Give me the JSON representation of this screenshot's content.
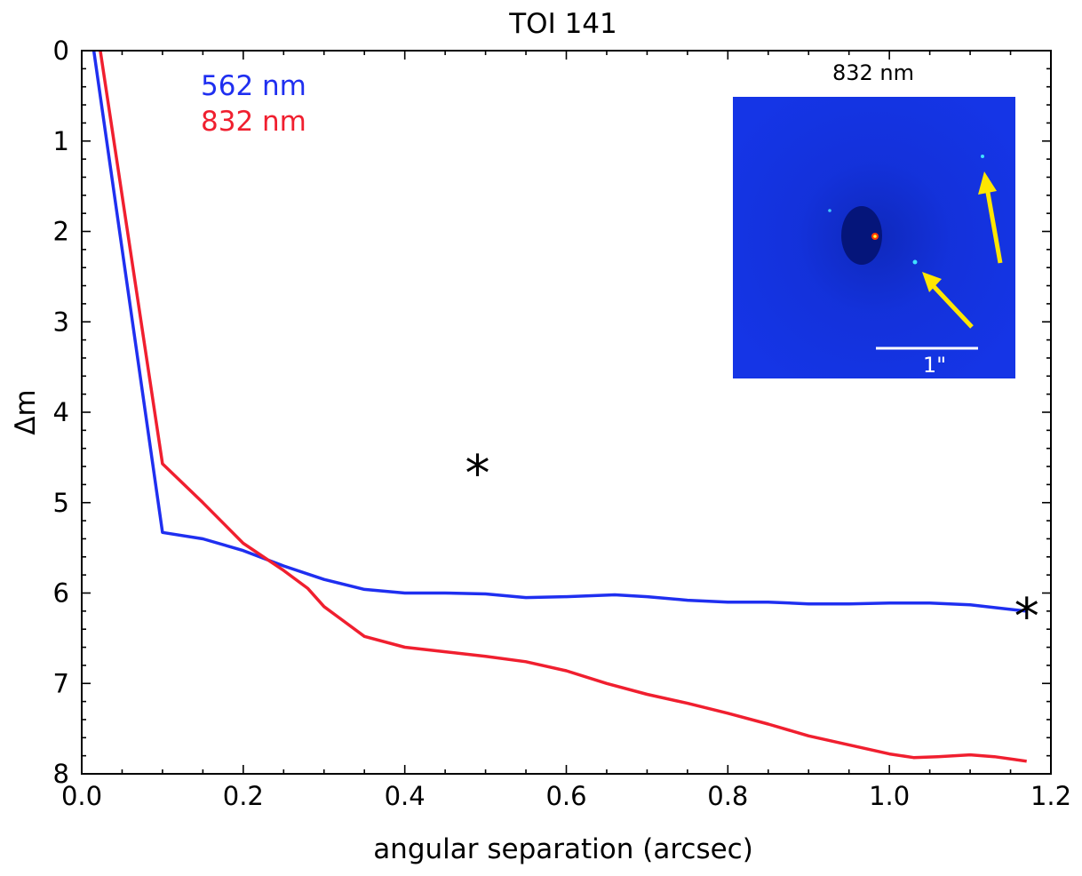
{
  "chart_data": {
    "type": "line",
    "title": "TOI 141",
    "xlabel": "angular separation (arcsec)",
    "ylabel": "Δm",
    "xlim": [
      0.0,
      1.2
    ],
    "ylim": [
      8,
      0
    ],
    "y_inverted": true,
    "grid": false,
    "legend_position": "top-left",
    "x_ticks": [
      "0.0",
      "0.2",
      "0.4",
      "0.6",
      "0.8",
      "1.0",
      "1.2"
    ],
    "y_ticks": [
      "0",
      "1",
      "2",
      "3",
      "4",
      "5",
      "6",
      "7",
      "8"
    ],
    "series": [
      {
        "name": "562 nm",
        "color": "#1f2ff0",
        "x": [
          0.015,
          0.1,
          0.15,
          0.2,
          0.25,
          0.3,
          0.35,
          0.4,
          0.45,
          0.5,
          0.55,
          0.6,
          0.66,
          0.7,
          0.75,
          0.8,
          0.85,
          0.9,
          0.95,
          1.0,
          1.05,
          1.1,
          1.17
        ],
        "y": [
          0.0,
          5.33,
          5.4,
          5.53,
          5.7,
          5.85,
          5.96,
          6.0,
          6.0,
          6.01,
          6.05,
          6.04,
          6.02,
          6.04,
          6.08,
          6.1,
          6.1,
          6.12,
          6.12,
          6.11,
          6.11,
          6.13,
          6.2
        ]
      },
      {
        "name": "832 nm",
        "color": "#f01f2f",
        "x": [
          0.023,
          0.1,
          0.15,
          0.2,
          0.25,
          0.28,
          0.3,
          0.35,
          0.4,
          0.45,
          0.5,
          0.55,
          0.6,
          0.65,
          0.7,
          0.75,
          0.8,
          0.85,
          0.9,
          0.95,
          1.0,
          1.03,
          1.06,
          1.1,
          1.13,
          1.17
        ],
        "y": [
          0.0,
          4.57,
          5.0,
          5.45,
          5.75,
          5.95,
          6.15,
          6.48,
          6.6,
          6.65,
          6.7,
          6.76,
          6.86,
          7.0,
          7.12,
          7.22,
          7.33,
          7.45,
          7.58,
          7.68,
          7.78,
          7.82,
          7.81,
          7.79,
          7.81,
          7.86
        ]
      }
    ],
    "markers": [
      {
        "label": "*",
        "x": 0.49,
        "y": 4.65
      },
      {
        "label": "*",
        "x": 1.17,
        "y": 6.23
      }
    ],
    "inset": {
      "title": "832 nm",
      "scale_label": "1\"",
      "background_color": "#1535e6",
      "arrow_color": "#ffe600"
    }
  }
}
